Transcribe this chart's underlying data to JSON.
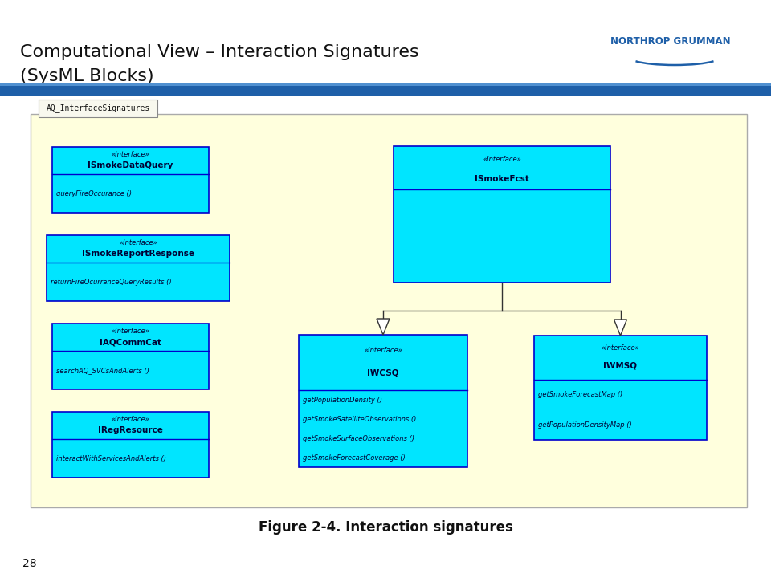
{
  "title_line1": "Computational View – Interaction Signatures",
  "title_line2": "(SysML Blocks)",
  "title_fontsize": 15,
  "bg_color": "#ffffff",
  "header_bar_color": "#1e5fa8",
  "diagram_bg": "#ffffdd",
  "box_fill": "#00e5ff",
  "box_border": "#0000cc",
  "outer_box_label": "AQ_InterfaceSignatures",
  "figure_caption": "Figure 2-4. Interaction signatures",
  "page_number": "28",
  "ng_text": "NORTHROP GRUMMAN"
}
